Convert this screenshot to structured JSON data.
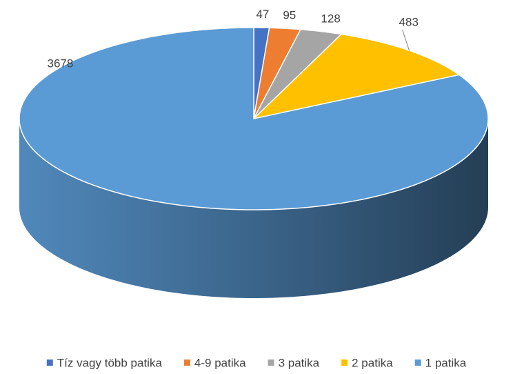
{
  "chart_data": {
    "type": "pie",
    "categories": [
      "Tíz vagy több patika",
      "4-9 patika",
      "3 patika",
      "2 patika",
      "1 patika"
    ],
    "values": [
      47,
      95,
      128,
      483,
      3678
    ],
    "colors": [
      "#4472c4",
      "#ed7d31",
      "#a5a5a5",
      "#ffc000",
      "#5b9bd5"
    ],
    "legend": "bottom"
  }
}
